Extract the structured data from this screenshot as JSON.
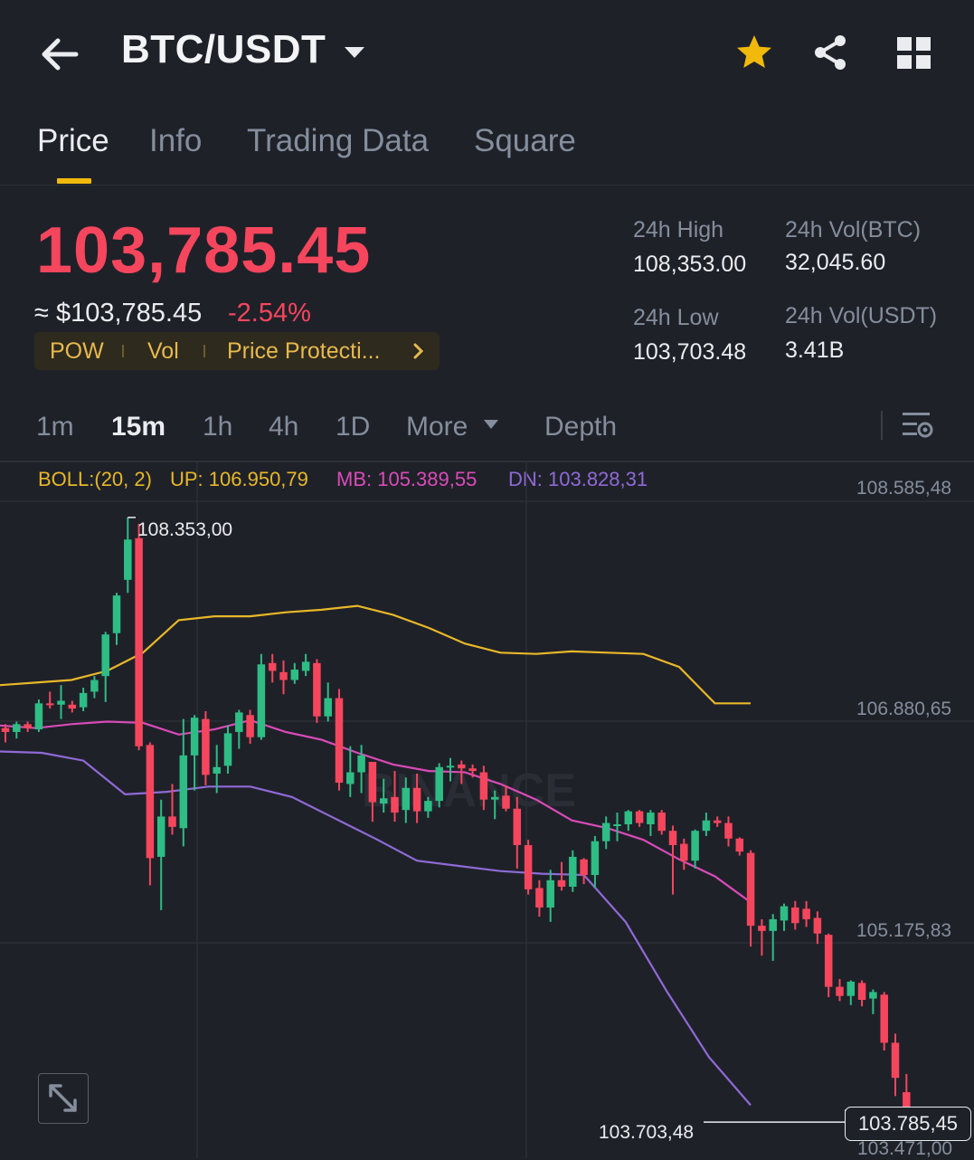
{
  "header": {
    "pair": "BTC/USDT",
    "icons": [
      "back-arrow-icon",
      "caret-down-icon",
      "star-icon",
      "share-icon",
      "grid-icon"
    ]
  },
  "tabs": [
    {
      "label": "Price",
      "active": true
    },
    {
      "label": "Info",
      "active": false
    },
    {
      "label": "Trading Data",
      "active": false
    },
    {
      "label": "Square",
      "active": false
    }
  ],
  "price": {
    "last": "103,785.45",
    "approx": "≈ $103,785.45",
    "change": "-2.54%"
  },
  "tags": [
    "POW",
    "Vol",
    "Price Protecti..."
  ],
  "stats": {
    "high_label": "24h High",
    "high": "108,353.00",
    "low_label": "24h Low",
    "low": "103,703.48",
    "vol_btc_label": "24h Vol(BTC)",
    "vol_btc": "32,045.60",
    "vol_usdt_label": "24h Vol(USDT)",
    "vol_usdt": "3.41B"
  },
  "intervals": {
    "items": [
      {
        "label": "1m",
        "active": false
      },
      {
        "label": "15m",
        "active": true
      },
      {
        "label": "1h",
        "active": false
      },
      {
        "label": "4h",
        "active": false
      },
      {
        "label": "1D",
        "active": false
      },
      {
        "label": "More",
        "active": false
      },
      {
        "label": "Depth",
        "active": false
      }
    ]
  },
  "boll": {
    "name": "BOLL:(20, 2)",
    "up": "UP: 106.950,79",
    "mb": "MB: 105.389,55",
    "dn": "DN: 103.828,31"
  },
  "colors": {
    "up": "#2ebd85",
    "down": "#f6465d",
    "accent": "#f0b90b",
    "boll_up": "#e8b828",
    "boll_mb": "#d94bb8",
    "boll_dn": "#8f6ad6",
    "bg": "#1f2129"
  },
  "chart": {
    "y_labels": [
      "108.585,48",
      "106.880,65",
      "105.175,83",
      "103.471,00"
    ],
    "high_marker": "108.353,00",
    "low_marker": "103.703,48",
    "current_price_tag": "103.785,45",
    "watermark": "BINANCE"
  },
  "chart_data": {
    "type": "candlestick",
    "interval": "15m",
    "ylim": [
      103471.0,
      108585.48
    ],
    "candles": [
      {
        "o": 106730,
        "h": 106760,
        "l": 106620,
        "c": 106700
      },
      {
        "o": 106700,
        "h": 106780,
        "l": 106650,
        "c": 106760
      },
      {
        "o": 106760,
        "h": 106780,
        "l": 106700,
        "c": 106730
      },
      {
        "o": 106720,
        "h": 106950,
        "l": 106700,
        "c": 106920
      },
      {
        "o": 106920,
        "h": 107010,
        "l": 106880,
        "c": 106910
      },
      {
        "o": 106910,
        "h": 107060,
        "l": 106800,
        "c": 106940
      },
      {
        "o": 106910,
        "h": 106940,
        "l": 106850,
        "c": 106880
      },
      {
        "o": 106890,
        "h": 107040,
        "l": 106860,
        "c": 107000
      },
      {
        "o": 107010,
        "h": 107130,
        "l": 106960,
        "c": 107100
      },
      {
        "o": 107130,
        "h": 107470,
        "l": 106930,
        "c": 107450
      },
      {
        "o": 107460,
        "h": 107770,
        "l": 107370,
        "c": 107750
      },
      {
        "o": 107870,
        "h": 108350,
        "l": 107770,
        "c": 108180
      },
      {
        "o": 108190,
        "h": 108300,
        "l": 106560,
        "c": 106590
      },
      {
        "o": 106600,
        "h": 106620,
        "l": 105520,
        "c": 105730
      },
      {
        "o": 105740,
        "h": 106180,
        "l": 105330,
        "c": 106050
      },
      {
        "o": 106050,
        "h": 106300,
        "l": 105910,
        "c": 105970
      },
      {
        "o": 105960,
        "h": 106800,
        "l": 105820,
        "c": 106520
      },
      {
        "o": 106520,
        "h": 106830,
        "l": 106250,
        "c": 106810
      },
      {
        "o": 106800,
        "h": 106860,
        "l": 106290,
        "c": 106370
      },
      {
        "o": 106380,
        "h": 106600,
        "l": 106230,
        "c": 106430
      },
      {
        "o": 106440,
        "h": 106750,
        "l": 106380,
        "c": 106690
      },
      {
        "o": 106700,
        "h": 106870,
        "l": 106570,
        "c": 106850
      },
      {
        "o": 106830,
        "h": 106870,
        "l": 106610,
        "c": 106660
      },
      {
        "o": 106660,
        "h": 107300,
        "l": 106640,
        "c": 107220
      },
      {
        "o": 107230,
        "h": 107300,
        "l": 107080,
        "c": 107170
      },
      {
        "o": 107160,
        "h": 107250,
        "l": 106990,
        "c": 107100
      },
      {
        "o": 107100,
        "h": 107230,
        "l": 107070,
        "c": 107180
      },
      {
        "o": 107170,
        "h": 107300,
        "l": 107130,
        "c": 107240
      },
      {
        "o": 107230,
        "h": 107260,
        "l": 106770,
        "c": 106820
      },
      {
        "o": 106820,
        "h": 107080,
        "l": 106780,
        "c": 106960
      },
      {
        "o": 106960,
        "h": 107030,
        "l": 106250,
        "c": 106310
      },
      {
        "o": 106300,
        "h": 106590,
        "l": 106200,
        "c": 106390
      },
      {
        "o": 106390,
        "h": 106600,
        "l": 106230,
        "c": 106520
      },
      {
        "o": 106470,
        "h": 106470,
        "l": 106010,
        "c": 106160
      },
      {
        "o": 106150,
        "h": 106340,
        "l": 106080,
        "c": 106190
      },
      {
        "o": 106200,
        "h": 106400,
        "l": 106010,
        "c": 106080
      },
      {
        "o": 106100,
        "h": 106350,
        "l": 106000,
        "c": 106270
      },
      {
        "o": 106270,
        "h": 106380,
        "l": 106000,
        "c": 106090
      },
      {
        "o": 106090,
        "h": 106200,
        "l": 106040,
        "c": 106170
      },
      {
        "o": 106170,
        "h": 106460,
        "l": 106120,
        "c": 106430
      },
      {
        "o": 106440,
        "h": 106500,
        "l": 106320,
        "c": 106440
      },
      {
        "o": 106450,
        "h": 106480,
        "l": 106300,
        "c": 106420
      },
      {
        "o": 106420,
        "h": 106450,
        "l": 106350,
        "c": 106400
      },
      {
        "o": 106390,
        "h": 106440,
        "l": 106100,
        "c": 106180
      },
      {
        "o": 106180,
        "h": 106250,
        "l": 106030,
        "c": 106200
      },
      {
        "o": 106210,
        "h": 106290,
        "l": 106090,
        "c": 106110
      },
      {
        "o": 106110,
        "h": 106200,
        "l": 105650,
        "c": 105830
      },
      {
        "o": 105830,
        "h": 105870,
        "l": 105450,
        "c": 105490
      },
      {
        "o": 105500,
        "h": 105560,
        "l": 105280,
        "c": 105350
      },
      {
        "o": 105350,
        "h": 105640,
        "l": 105240,
        "c": 105560
      },
      {
        "o": 105560,
        "h": 105700,
        "l": 105480,
        "c": 105510
      },
      {
        "o": 105510,
        "h": 105790,
        "l": 105470,
        "c": 105740
      },
      {
        "o": 105720,
        "h": 105730,
        "l": 105530,
        "c": 105600
      },
      {
        "o": 105600,
        "h": 105900,
        "l": 105500,
        "c": 105860
      },
      {
        "o": 105860,
        "h": 106050,
        "l": 105800,
        "c": 106000
      },
      {
        "o": 105980,
        "h": 106080,
        "l": 105860,
        "c": 105990
      },
      {
        "o": 105990,
        "h": 106100,
        "l": 105940,
        "c": 106090
      },
      {
        "o": 106090,
        "h": 106100,
        "l": 105970,
        "c": 106000
      },
      {
        "o": 105990,
        "h": 106100,
        "l": 105900,
        "c": 106080
      },
      {
        "o": 106080,
        "h": 106100,
        "l": 105910,
        "c": 105940
      },
      {
        "o": 105940,
        "h": 105980,
        "l": 105450,
        "c": 105830
      },
      {
        "o": 105840,
        "h": 105880,
        "l": 105640,
        "c": 105710
      },
      {
        "o": 105710,
        "h": 105950,
        "l": 105650,
        "c": 105940
      },
      {
        "o": 105940,
        "h": 106080,
        "l": 105900,
        "c": 106020
      },
      {
        "o": 106020,
        "h": 106050,
        "l": 105970,
        "c": 106000
      },
      {
        "o": 106000,
        "h": 106050,
        "l": 105820,
        "c": 105880
      },
      {
        "o": 105880,
        "h": 105890,
        "l": 105750,
        "c": 105780
      },
      {
        "o": 105770,
        "h": 105790,
        "l": 105050,
        "c": 105210
      },
      {
        "o": 105210,
        "h": 105260,
        "l": 104980,
        "c": 105170
      },
      {
        "o": 105170,
        "h": 105300,
        "l": 104940,
        "c": 105260
      },
      {
        "o": 105250,
        "h": 105380,
        "l": 105170,
        "c": 105360
      },
      {
        "o": 105350,
        "h": 105400,
        "l": 105180,
        "c": 105230
      },
      {
        "o": 105340,
        "h": 105400,
        "l": 105200,
        "c": 105260
      },
      {
        "o": 105270,
        "h": 105320,
        "l": 105070,
        "c": 105150
      },
      {
        "o": 105140,
        "h": 105150,
        "l": 104660,
        "c": 104740
      },
      {
        "o": 104740,
        "h": 104800,
        "l": 104630,
        "c": 104670
      },
      {
        "o": 104670,
        "h": 104790,
        "l": 104600,
        "c": 104780
      },
      {
        "o": 104770,
        "h": 104790,
        "l": 104590,
        "c": 104640
      },
      {
        "o": 104650,
        "h": 104720,
        "l": 104530,
        "c": 104700
      },
      {
        "o": 104680,
        "h": 104700,
        "l": 104250,
        "c": 104310
      },
      {
        "o": 104310,
        "h": 104380,
        "l": 103900,
        "c": 104040
      },
      {
        "o": 103930,
        "h": 104070,
        "l": 103700,
        "c": 103790
      }
    ],
    "boll_up": [
      107060,
      107080,
      107100,
      107170,
      107310,
      107560,
      107590,
      107590,
      107620,
      107640,
      107670,
      107600,
      107500,
      107380,
      107310,
      107300,
      107320,
      107310,
      107300,
      107200,
      106920,
      106920
    ],
    "boll_mb": [
      106750,
      106730,
      106760,
      106780,
      106770,
      106680,
      106720,
      106790,
      106700,
      106640,
      106540,
      106450,
      106400,
      106390,
      106300,
      106180,
      106020,
      105960,
      105870,
      105720,
      105590,
      105390
    ],
    "boll_dn": [
      106550,
      106540,
      106480,
      106220,
      106240,
      106280,
      106280,
      106200,
      106040,
      105880,
      105710,
      105670,
      105630,
      105610,
      105600,
      105240,
      104700,
      104200,
      103830
    ]
  }
}
